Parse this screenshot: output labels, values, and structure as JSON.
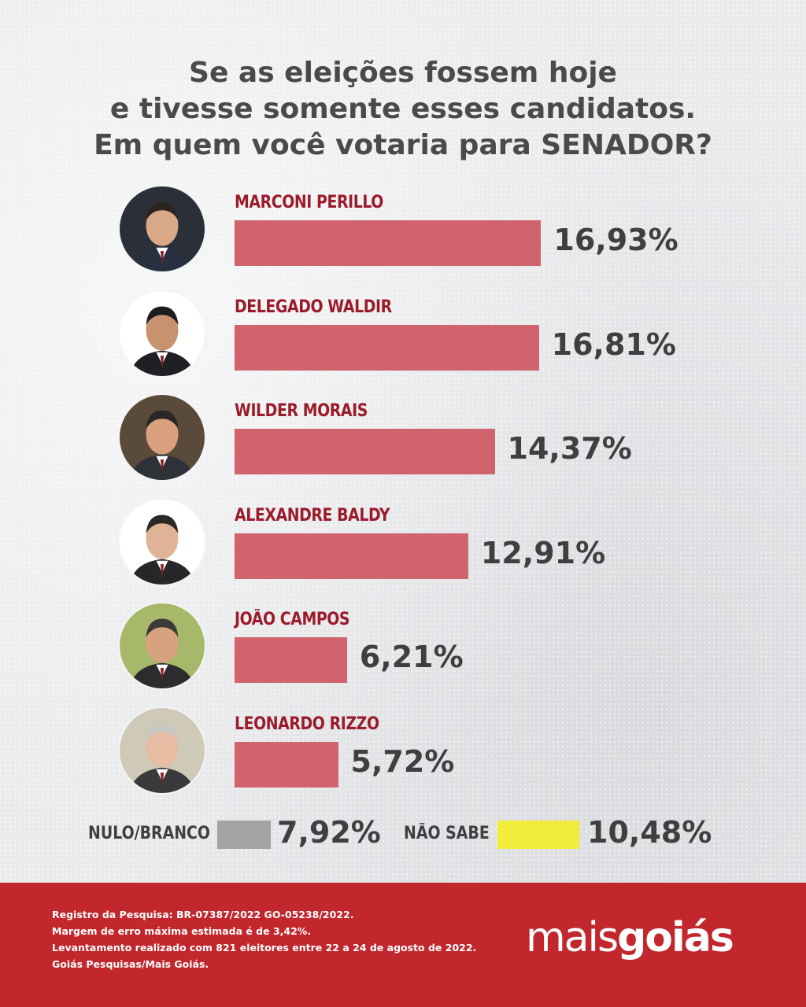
{
  "title": {
    "line1": "Se as eleições fossem hoje",
    "line2": "e tivesse somente esses candidatos.",
    "line3": "Em quem você votaria para SENADOR?"
  },
  "colors": {
    "bar": "#d0636d",
    "name": "#9b1b2a",
    "nulo_box": "#a3a3a5",
    "nao_sabe_box": "#f2ec3a",
    "footer": "#c1272d"
  },
  "chart_data": {
    "type": "bar",
    "orientation": "horizontal",
    "categories": [
      "MARCONI PERILLO",
      "DELEGADO WALDIR",
      "WILDER MORAIS",
      "ALEXANDRE BALDY",
      "JOÃO CAMPOS",
      "LEONARDO RIZZO"
    ],
    "values": [
      16.93,
      16.81,
      14.37,
      12.91,
      6.21,
      5.72
    ],
    "value_labels": [
      "16,93%",
      "16,81%",
      "14,37%",
      "12,91%",
      "6,21%",
      "5,72%"
    ],
    "extras": [
      {
        "label": "NULO/BRANCO",
        "value": 7.92,
        "value_label": "7,92%",
        "color": "#a3a3a5"
      },
      {
        "label": "NÃO SABE",
        "value": 10.48,
        "value_label": "10,48%",
        "color": "#f2ec3a"
      }
    ]
  },
  "footer": {
    "line1": "Registro da Pesquisa: BR-07387/2022 GO-05238/2022.",
    "line2": "Margem de erro máxima estimada é de 3,42%.",
    "line3": "Levantamento realizado com 821 eleitores entre 22 a 24 de agosto de 2022.",
    "line4": "Goiás Pesquisas/Mais Goiás.",
    "logo_part1": "mais",
    "logo_part2": "goiás"
  }
}
